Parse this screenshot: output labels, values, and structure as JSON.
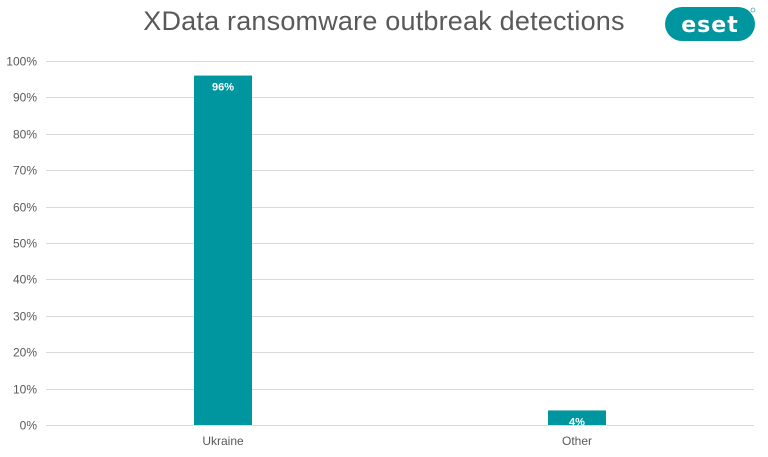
{
  "logo": {
    "text": "eset",
    "color": "#0096a0"
  },
  "chart_data": {
    "type": "bar",
    "title": "XData ransomware outbreak detections",
    "categories": [
      "Ukraine",
      "Other"
    ],
    "values": [
      96,
      4
    ],
    "data_labels": [
      "96%",
      "4%"
    ],
    "xlabel": "",
    "ylabel": "",
    "ylim": [
      0,
      100
    ],
    "y_ticks": [
      "0%",
      "10%",
      "20%",
      "30%",
      "40%",
      "50%",
      "60%",
      "70%",
      "80%",
      "90%",
      "100%"
    ],
    "grid": true,
    "legend": "none",
    "bar_color": "#00969f",
    "grid_color": "#d9d9d9"
  }
}
